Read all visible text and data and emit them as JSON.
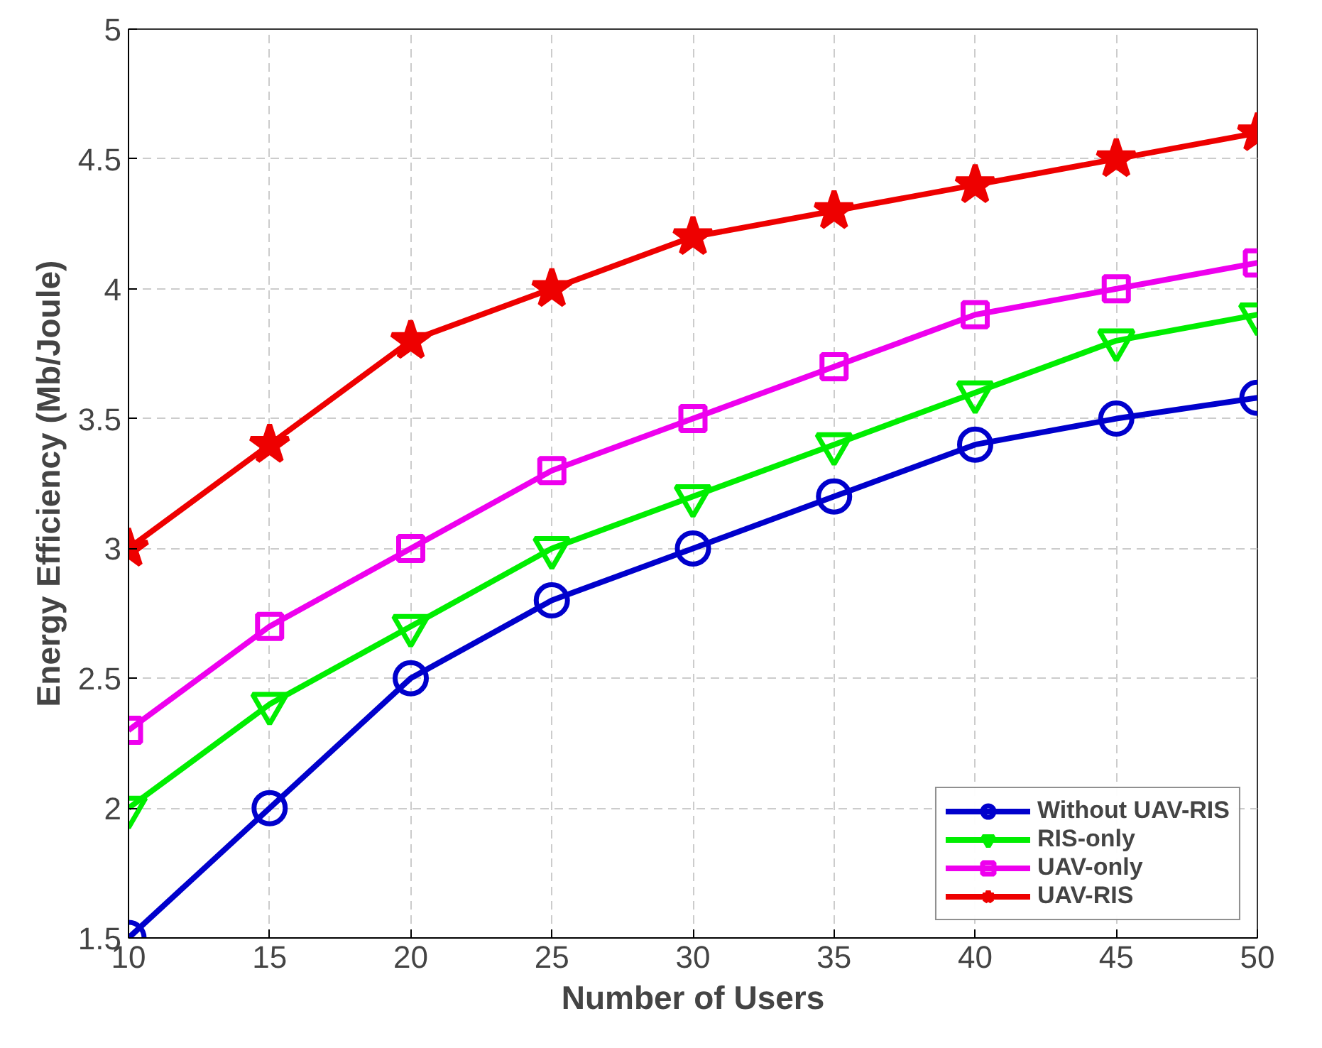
{
  "chart_data": {
    "type": "line",
    "xlabel": "Number of Users",
    "ylabel": "Energy Efficiency (Mb/Joule)",
    "x": [
      10,
      15,
      20,
      25,
      30,
      35,
      40,
      45,
      50
    ],
    "series": [
      {
        "name": "Without UAV-RIS",
        "color": "#0000cc",
        "marker": "circle",
        "values": [
          1.5,
          2.0,
          2.5,
          2.8,
          3.0,
          3.2,
          3.4,
          3.5,
          3.58
        ]
      },
      {
        "name": "RIS-only",
        "color": "#00ee00",
        "marker": "triangle",
        "values": [
          2.0,
          2.4,
          2.7,
          3.0,
          3.2,
          3.4,
          3.6,
          3.8,
          3.9
        ]
      },
      {
        "name": "UAV-only",
        "color": "#ee00ee",
        "marker": "square",
        "values": [
          2.3,
          2.7,
          3.0,
          3.3,
          3.5,
          3.7,
          3.9,
          4.0,
          4.1
        ]
      },
      {
        "name": "UAV-RIS",
        "color": "#ee0000",
        "marker": "star",
        "values": [
          3.0,
          3.4,
          3.8,
          4.0,
          4.2,
          4.3,
          4.4,
          4.5,
          4.6
        ]
      }
    ],
    "xlim": [
      10,
      50
    ],
    "ylim": [
      1.5,
      5
    ],
    "xticks": [
      10,
      15,
      20,
      25,
      30,
      35,
      40,
      45,
      50
    ],
    "yticks": [
      1.5,
      2,
      2.5,
      3,
      3.5,
      4,
      4.5,
      5
    ],
    "grid": true,
    "legend": "bottom right",
    "line_style": "solid"
  }
}
